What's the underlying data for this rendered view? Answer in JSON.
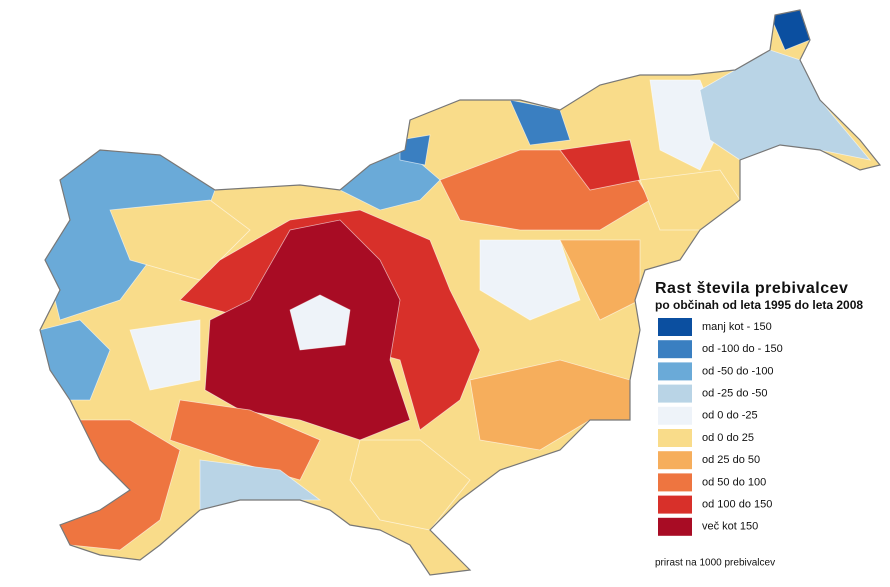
{
  "legend": {
    "title": "Rast števila prebivalcev",
    "subtitle": "po občinah od leta 1995 do leta 2008",
    "items": [
      {
        "label": "manj kot - 150",
        "color": "#0b4fa0"
      },
      {
        "label": "od -100 do - 150",
        "color": "#3a7fc1"
      },
      {
        "label": "od -50 do -100",
        "color": "#6aaad8"
      },
      {
        "label": "od -25 do -50",
        "color": "#b9d4e6"
      },
      {
        "label": "od 0 do -25",
        "color": "#eef3f9"
      },
      {
        "label": "od 0 do 25",
        "color": "#f9dc8a"
      },
      {
        "label": "od 25 do 50",
        "color": "#f6ae5c"
      },
      {
        "label": "od 50 do 100",
        "color": "#ee7540"
      },
      {
        "label": "od 100 do 150",
        "color": "#d8302a"
      },
      {
        "label": "več kot 150",
        "color": "#a80c24"
      }
    ],
    "note": "prirast na 1000 prebivalcev"
  }
}
